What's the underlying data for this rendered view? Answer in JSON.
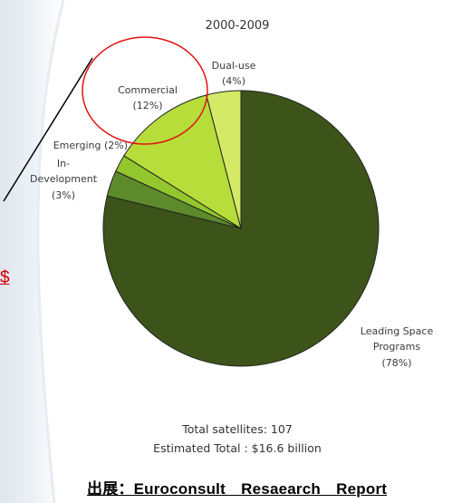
{
  "chart_data": {
    "type": "pie",
    "title": "2000-2009",
    "slices": [
      {
        "label": "Leading Space Programs",
        "value_label": "(78%)",
        "value": 78,
        "color": "#3c541a"
      },
      {
        "label": "In-Development",
        "value_label": "(3%)",
        "value": 3,
        "color": "#5d8b2c"
      },
      {
        "label": "Emerging (2%)",
        "value_label": "",
        "value": 2,
        "color": "#94c72c"
      },
      {
        "label": "Commercial",
        "value_label": "(12%)",
        "value": 12,
        "color": "#b6dd3a"
      },
      {
        "label": "Dual-use",
        "value_label": "(4%)",
        "value": 4,
        "color": "#d4ea66"
      }
    ],
    "footer_line1": "Total satellites: 107",
    "footer_line2": "Estimated Total : $16.6 billion"
  },
  "source_text": "出展：Euroconsult　Resaearch　Report",
  "side_mark": "$",
  "colors": {
    "annotation_circle": "#e11414",
    "annotation_line": "#000000",
    "slice_border": "#222222"
  }
}
